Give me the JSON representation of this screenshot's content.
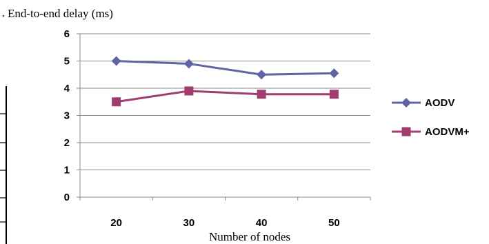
{
  "chart_data": {
    "type": "line",
    "title": "End-to-end delay (ms)",
    "xlabel": "Number of nodes",
    "ylabel": "",
    "categories": [
      "20",
      "30",
      "40",
      "50"
    ],
    "ylim": [
      0,
      6
    ],
    "yticks": [
      "0",
      "1",
      "2",
      "3",
      "4",
      "5",
      "6"
    ],
    "grid": true,
    "legend_position": "right",
    "series": [
      {
        "name": "AODV",
        "values": [
          5.0,
          4.9,
          4.5,
          4.55
        ],
        "color": "#6064A4",
        "marker": "diamond"
      },
      {
        "name": "AODVM+",
        "values": [
          3.5,
          3.9,
          3.78,
          3.78
        ],
        "color": "#A03D6E",
        "marker": "square"
      }
    ]
  }
}
